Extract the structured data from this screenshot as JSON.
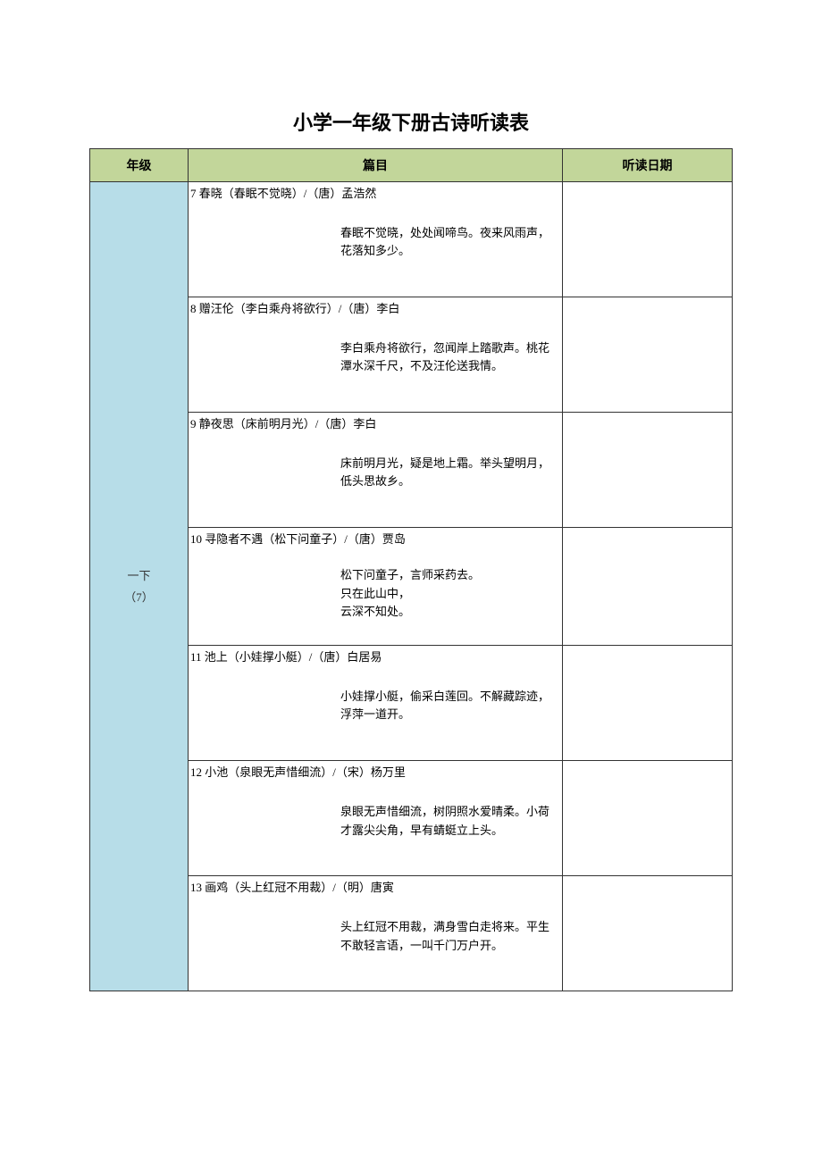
{
  "title": "小学一年级下册古诗听读表",
  "headers": {
    "grade": "年级",
    "poem": "篇目",
    "date": "听读日期"
  },
  "grade_label_line1": "一下",
  "grade_label_line2": "（7）",
  "poems": [
    {
      "heading": "7 春晓（春眠不觉晓）/（唐）孟浩然",
      "body": "春眠不觉晓，处处闻啼鸟。夜来风雨声，花落知多少。"
    },
    {
      "heading": "8 赠汪伦（李白乘舟将欲行）/（唐）李白",
      "body": "李白乘舟将欲行，忽闻岸上踏歌声。桃花潭水深千尺，不及汪伦送我情。"
    },
    {
      "heading": "9 静夜思（床前明月光）/（唐）李白",
      "body": "床前明月光，疑是地上霜。举头望明月，低头思故乡。"
    },
    {
      "heading": "10 寻隐者不遇（松下问童子）/（唐）贾岛",
      "body": "松下问童子，言师采药去。\n只在此山中，\n云深不知处。"
    },
    {
      "heading": "11 池上（小娃撑小艇）/（唐）白居易",
      "body": "小娃撑小艇，偷采白莲回。不解藏踪迹，浮萍一道开。"
    },
    {
      "heading": "12 小池（泉眼无声惜细流）/（宋）杨万里",
      "body": "泉眼无声惜细流，树阴照水爱晴柔。小荷才露尖尖角，早有蜻蜓立上头。"
    },
    {
      "heading": "13 画鸡（头上红冠不用裁）/（明）唐寅",
      "body": "头上红冠不用裁，满身雪白走将来。平生不敢轻言语，一叫千门万户开。"
    }
  ],
  "colors": {
    "header_bg": "#c2d69a",
    "grade_bg": "#b7dde8",
    "border": "#333333",
    "background": "#ffffff"
  }
}
